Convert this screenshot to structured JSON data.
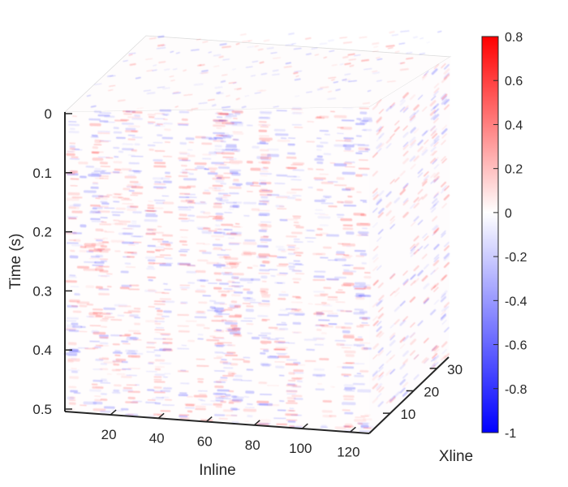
{
  "chart_data": {
    "type": "heatmap",
    "variant": "3d-seismic-cube",
    "title": "",
    "axes": {
      "x": {
        "label": "Inline",
        "range": [
          1,
          128
        ],
        "ticks": [
          "20",
          "40",
          "60",
          "80",
          "100",
          "120"
        ],
        "tick_values": [
          20,
          40,
          60,
          80,
          100,
          120
        ]
      },
      "y": {
        "label": "Xline",
        "range": [
          1,
          35
        ],
        "ticks": [
          "10",
          "20",
          "30"
        ],
        "tick_values": [
          10,
          20,
          30
        ]
      },
      "z": {
        "label": "Time (s)",
        "range": [
          0,
          0.5
        ],
        "reversed": true,
        "ticks": [
          "0",
          "0.1",
          "0.2",
          "0.3",
          "0.4",
          "0.5"
        ],
        "tick_values": [
          0,
          0.1,
          0.2,
          0.3,
          0.4,
          0.5
        ]
      }
    },
    "colorbar": {
      "range": [
        -1,
        0.8
      ],
      "ticks": [
        "0.8",
        "0.6",
        "0.4",
        "0.2",
        "0",
        "-0.2",
        "-0.4",
        "-0.6",
        "-0.8",
        "-1"
      ],
      "tick_values": [
        0.8,
        0.6,
        0.4,
        0.2,
        0,
        -0.2,
        -0.4,
        -0.6,
        -0.8,
        -1
      ],
      "colormap": "blue-white-red",
      "colors": {
        "min": "#0000ff",
        "mid": "#ffffff",
        "max": "#ff0000"
      }
    },
    "grid": false
  }
}
